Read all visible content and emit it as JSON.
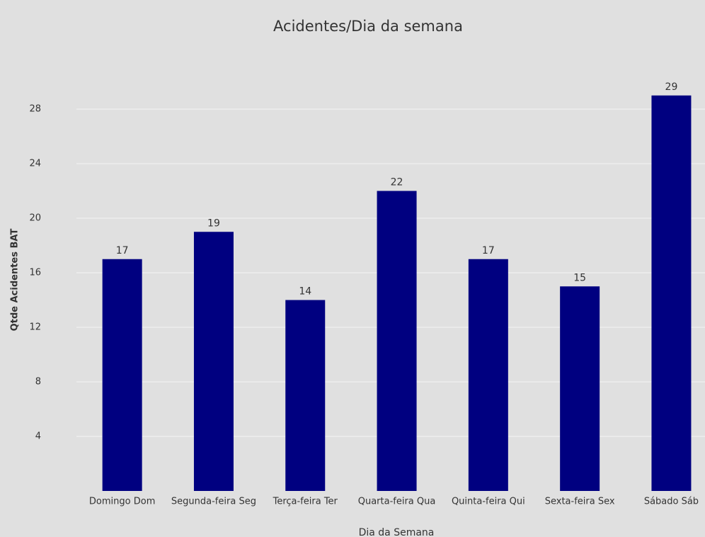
{
  "chart_data": {
    "type": "bar",
    "title": "Acidentes/Dia da semana",
    "x_label": "Dia da Semana",
    "y_label": "Qtde Acidentes BAT",
    "categories": [
      "Domingo Dom",
      "Segunda-feira Seg",
      "Terça-feira  Ter",
      "Quarta-feira Qua",
      "Quinta-feira Qui",
      "Sexta-feira Sex",
      "Sábado Sáb"
    ],
    "values": [
      17,
      19,
      14,
      22,
      17,
      15,
      29
    ],
    "color": "#000080",
    "ylim": [
      0,
      30
    ],
    "yticks": [
      4,
      8,
      12,
      16,
      20,
      24,
      28
    ],
    "grid": true
  }
}
